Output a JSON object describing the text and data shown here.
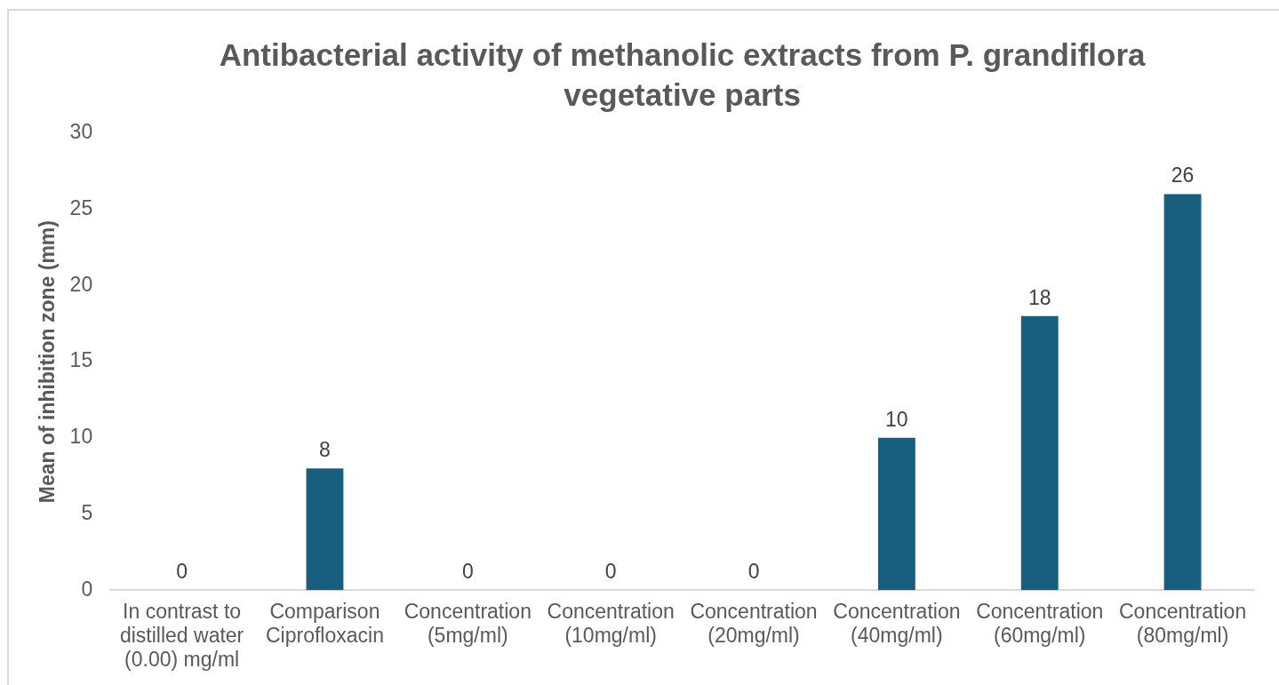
{
  "chart_data": {
    "type": "bar",
    "title": "Antibacterial activity of methanolic extracts from P. grandiflora vegetative parts",
    "ylabel": "Mean of inhibition zone (mm)",
    "categories": [
      "In contrast to distilled water (0.00) mg/ml",
      "Comparison Ciprofloxacin",
      "Concentration (5mg/ml)",
      "Concentration (10mg/ml)",
      "Concentration (20mg/ml)",
      "Concentration (40mg/ml)",
      "Concentration (60mg/ml)",
      "Concentration (80mg/ml)"
    ],
    "values": [
      0,
      8,
      0,
      0,
      0,
      10,
      18,
      26
    ],
    "color": "#185f7f",
    "ylim": [
      0,
      30
    ],
    "yticks": [
      0,
      5,
      10,
      15,
      20,
      25,
      30
    ],
    "data_labels": true
  }
}
